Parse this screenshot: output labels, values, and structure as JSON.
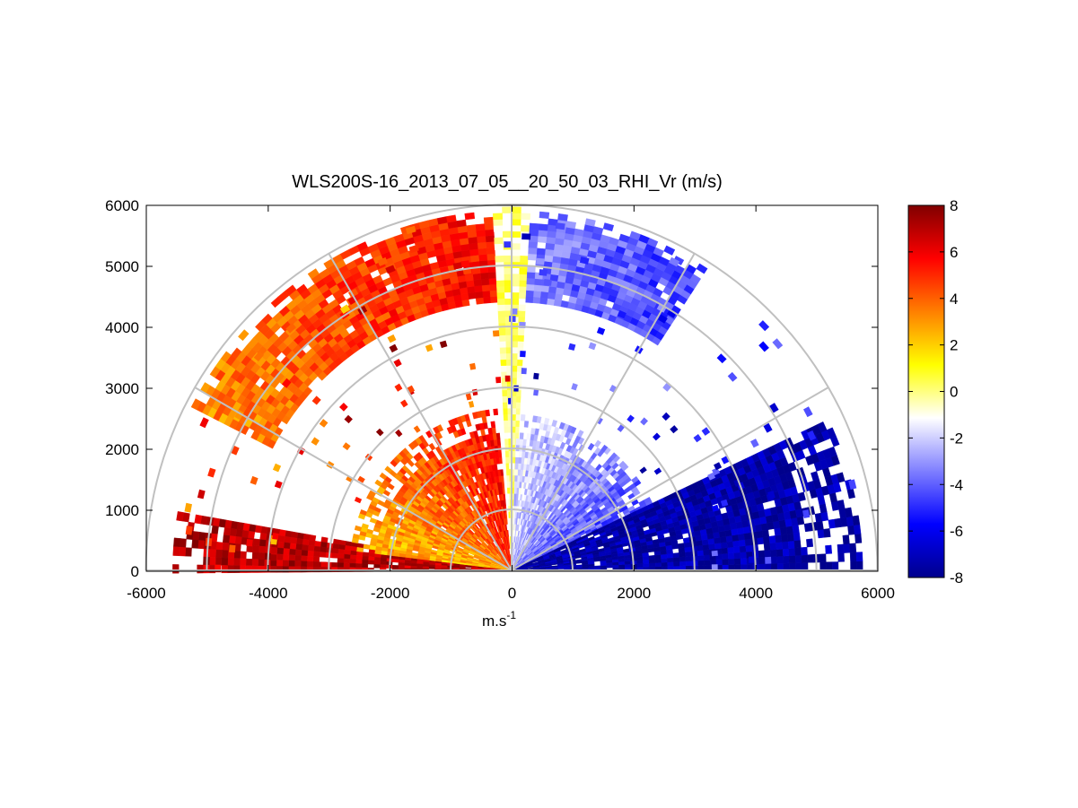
{
  "chart_data": {
    "type": "heatmap",
    "subtype": "polar-rhi-sector",
    "title": "WLS200S-16_2013_07_05__20_50_03_RHI_Vr (m/s)",
    "xlabel": "m.s",
    "xlabel_superscript": "-1",
    "ylabel": "",
    "xlim": [
      -6000,
      6000
    ],
    "ylim": [
      0,
      6000
    ],
    "x_ticks": [
      -6000,
      -4000,
      -2000,
      0,
      2000,
      4000,
      6000
    ],
    "x_tick_labels": [
      "-6000",
      "-4000",
      "-2000",
      "0",
      "2000",
      "4000",
      "6000"
    ],
    "y_ticks": [
      0,
      1000,
      2000,
      3000,
      4000,
      5000,
      6000
    ],
    "y_tick_labels": [
      "0",
      "1000",
      "2000",
      "3000",
      "4000",
      "5000",
      "6000"
    ],
    "polar_grid": {
      "range_rings": [
        1000,
        2000,
        3000,
        4000,
        5000,
        6000
      ],
      "spokes_deg": [
        0,
        30,
        60,
        90,
        120,
        150,
        180
      ]
    },
    "colorbar": {
      "vmin": -8,
      "vmax": 8,
      "ticks": [
        -8,
        -6,
        -4,
        -2,
        0,
        2,
        4,
        6,
        8
      ],
      "tick_labels": [
        "-8",
        "-6",
        "-4",
        "-2",
        "0",
        "2",
        "4",
        "6",
        "8"
      ],
      "colormap": "diverging blue-white-yellow-red",
      "stops": [
        "#00008c",
        "#0000ff",
        "#7f7fff",
        "#ffffff",
        "#ffff00",
        "#ff8000",
        "#ff0000",
        "#800000"
      ]
    },
    "regions": [
      {
        "name": "near-range downwind lobe",
        "az_deg": [
          170,
          180
        ],
        "range_m": [
          0,
          5500
        ],
        "vr_ms": 7
      },
      {
        "name": "near-range left sector",
        "az_deg": [
          95,
          172
        ],
        "range_m": [
          0,
          2600
        ],
        "vr_ms": 4
      },
      {
        "name": "far-range upper-left arc",
        "az_deg": [
          93,
          152
        ],
        "range_m": [
          4400,
          5900
        ],
        "vr_ms": 4.5
      },
      {
        "name": "vertical band",
        "az_deg": [
          87,
          93
        ],
        "range_m": [
          0,
          5900
        ],
        "vr_ms": 0
      },
      {
        "name": "near-range right sector",
        "az_deg": [
          25,
          87
        ],
        "range_m": [
          0,
          2500
        ],
        "vr_ms": -3
      },
      {
        "name": "far-range upper-right arc",
        "az_deg": [
          57,
          87
        ],
        "range_m": [
          4400,
          5900
        ],
        "vr_ms": -4
      },
      {
        "name": "low-elevation upwind lobe",
        "az_deg": [
          0,
          25
        ],
        "range_m": [
          0,
          5700
        ],
        "vr_ms": -7.5
      }
    ]
  }
}
